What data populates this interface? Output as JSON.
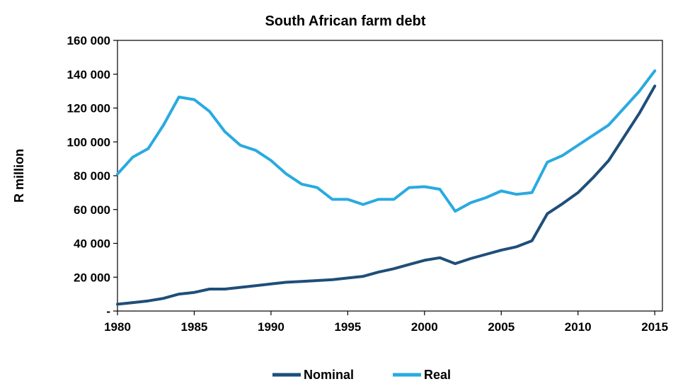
{
  "chart_data": {
    "type": "line",
    "title": "South African farm debt",
    "xlabel": "",
    "ylabel": "R million",
    "xlim": [
      1980,
      2015.5
    ],
    "ylim": [
      0,
      160000
    ],
    "x_ticks": [
      1980,
      1985,
      1990,
      1995,
      2000,
      2005,
      2010,
      2015
    ],
    "y_ticks": [
      0,
      20000,
      40000,
      60000,
      80000,
      100000,
      120000,
      140000,
      160000
    ],
    "y_tick_labels": [
      "-",
      "20 000",
      "40 000",
      "60 000",
      "80 000",
      "100 000",
      "120 000",
      "140 000",
      "160 000"
    ],
    "grid": false,
    "legend_position": "bottom",
    "x": [
      1980,
      1981,
      1982,
      1983,
      1984,
      1985,
      1986,
      1987,
      1988,
      1989,
      1990,
      1991,
      1992,
      1993,
      1994,
      1995,
      1996,
      1997,
      1998,
      1999,
      2000,
      2001,
      2002,
      2003,
      2004,
      2005,
      2006,
      2007,
      2008,
      2009,
      2010,
      2011,
      2012,
      2013,
      2014,
      2015
    ],
    "series": [
      {
        "name": "Nominal",
        "color": "#1f4e79",
        "values": [
          4000,
          5000,
          6000,
          7500,
          10000,
          11000,
          13000,
          13000,
          14000,
          15000,
          16000,
          17000,
          17500,
          18000,
          18500,
          19500,
          20500,
          23000,
          25000,
          27500,
          30000,
          31500,
          28000,
          31000,
          33500,
          36000,
          38000,
          41500,
          57500,
          63500,
          70000,
          79000,
          89000,
          103000,
          117000,
          133000
        ]
      },
      {
        "name": "Real",
        "color": "#29aae1",
        "values": [
          81000,
          91000,
          96000,
          110000,
          126500,
          125000,
          118000,
          106000,
          98000,
          95000,
          89000,
          81000,
          75000,
          73000,
          66000,
          66000,
          63000,
          66000,
          66000,
          73000,
          73500,
          72000,
          59000,
          64000,
          67000,
          71000,
          69000,
          70000,
          88000,
          92000,
          98000,
          104000,
          110000,
          120000,
          130000,
          142000
        ]
      }
    ]
  }
}
